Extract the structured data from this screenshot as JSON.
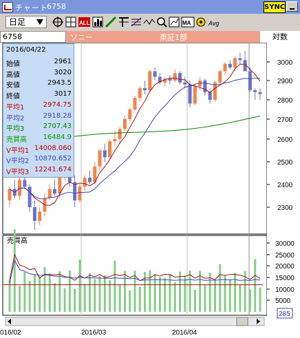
{
  "window": {
    "title": "チャート",
    "code": "6758",
    "sync_label": "SYNC"
  },
  "toolbar": {
    "period_select": "日足",
    "icons": [
      "target-icon",
      "cursor-icon",
      "all-icon",
      "bar-chart-icon",
      "pen-line-icon",
      "fork-icon",
      "fibonacci-icon",
      "wave-icon",
      "zoom-icon",
      "grid-icon",
      "ma-icon",
      "gear-icon",
      "magnifier-icon"
    ],
    "ma_label": "MA",
    "all_label": "ALL",
    "avg_label": "Avg"
  },
  "info_bar": {
    "code": "6758",
    "name": "ソニー",
    "market": "東証1部",
    "scale": "対数"
  },
  "info_panel": {
    "date": "2016/04/22",
    "rows": [
      {
        "k": "始値",
        "v": "2961",
        "c": "#000000"
      },
      {
        "k": "高値",
        "v": "3020",
        "c": "#000000"
      },
      {
        "k": "安値",
        "v": "2943.5",
        "c": "#000000"
      },
      {
        "k": "終値",
        "v": "3017",
        "c": "#000000"
      },
      {
        "k": "平均1",
        "v": "2974.75",
        "c": "#c00000"
      },
      {
        "k": "平均2",
        "v": "2918.28",
        "c": "#4040c0"
      },
      {
        "k": "平均3",
        "v": "2707.43",
        "c": "#008000"
      },
      {
        "k": "売買高",
        "v": "16484.9",
        "c": "#00a000"
      },
      {
        "k": "V平均1",
        "v": "14008.060",
        "c": "#c00000"
      },
      {
        "k": "V平均2",
        "v": "10870.652",
        "c": "#4040c0"
      },
      {
        "k": "V平均3",
        "v": "12241.674",
        "c": "#c00000"
      }
    ]
  },
  "price_axis": [
    "3000",
    "2900",
    "2800",
    "2700",
    "2600",
    "2500",
    "2400",
    "2300"
  ],
  "volume_axis": [
    "30000",
    "25000",
    "20000",
    "15000",
    "10000",
    "5000"
  ],
  "volume_label": "売買高",
  "x_labels": [
    "016/02",
    "2016/03",
    "2016/04"
  ],
  "scroll_value": "285",
  "colors": {
    "up": "#f0844a",
    "down": "#6a72c8",
    "ma1": "#a01010",
    "ma2": "#4040c0",
    "ma3": "#008000",
    "volume": "#88cc88",
    "infobar": "#f0a08a",
    "infobox": "#c6dcf4",
    "sync": "#f7f300"
  }
}
